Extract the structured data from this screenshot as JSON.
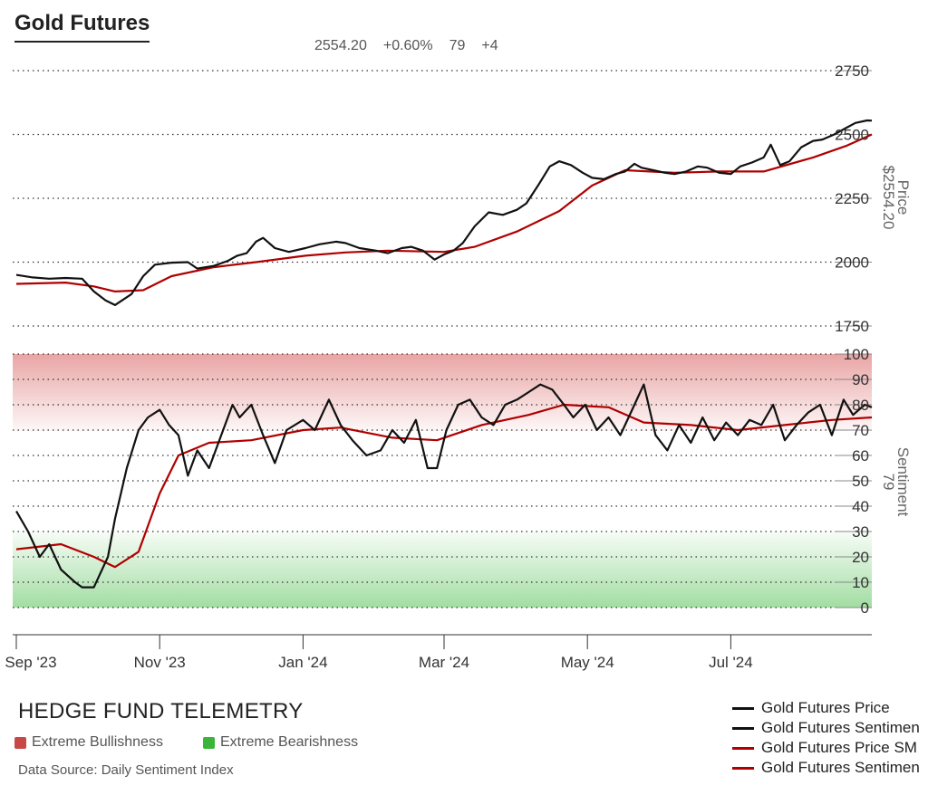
{
  "header": {
    "title": "Gold Futures",
    "price": "2554.20",
    "change": "+0.60%",
    "sentiment": "79",
    "sentiment_change": "+4"
  },
  "colors": {
    "price_line": "#111111",
    "sma_line": "#b00000",
    "bull_zone": "#e8a0a0",
    "bear_zone": "#9ddb9d",
    "bull_swatch": "#c84848",
    "bear_swatch": "#3ab53a"
  },
  "footer": {
    "brand": "HEDGE FUND TELEMETRY",
    "extreme_bull": "Extreme Bullishness",
    "extreme_bear": "Extreme Bearishness",
    "source": "Data Source: Daily Sentiment Index"
  },
  "legend": [
    "Gold Futures Price",
    "Gold Futures Sentimen",
    "Gold Futures Price SM",
    "Gold Futures Sentimen"
  ],
  "chart_data": {
    "type": "line",
    "x_ticks": [
      "Sep '23",
      "Nov '23",
      "Jan '24",
      "Mar '24",
      "May '24",
      "Jul '24"
    ],
    "price_panel": {
      "ylabel": "Price",
      "last_label": "$2554.20",
      "yticks": [
        1750,
        2000,
        2250,
        2500,
        2750
      ],
      "ylim": [
        1750,
        2750
      ],
      "price": [
        [
          "2023-09-01",
          1950
        ],
        [
          "2023-09-08",
          1940
        ],
        [
          "2023-09-15",
          1935
        ],
        [
          "2023-09-22",
          1938
        ],
        [
          "2023-09-29",
          1935
        ],
        [
          "2023-10-04",
          1885
        ],
        [
          "2023-10-09",
          1850
        ],
        [
          "2023-10-13",
          1832
        ],
        [
          "2023-10-20",
          1875
        ],
        [
          "2023-10-25",
          1945
        ],
        [
          "2023-10-30",
          1990
        ],
        [
          "2023-11-06",
          1998
        ],
        [
          "2023-11-13",
          2000
        ],
        [
          "2023-11-17",
          1975
        ],
        [
          "2023-11-24",
          1985
        ],
        [
          "2023-11-30",
          2005
        ],
        [
          "2023-12-04",
          2025
        ],
        [
          "2023-12-08",
          2035
        ],
        [
          "2023-12-12",
          2080
        ],
        [
          "2023-12-15",
          2095
        ],
        [
          "2023-12-20",
          2055
        ],
        [
          "2023-12-26",
          2040
        ],
        [
          "2024-01-02",
          2055
        ],
        [
          "2024-01-08",
          2070
        ],
        [
          "2024-01-15",
          2080
        ],
        [
          "2024-01-19",
          2075
        ],
        [
          "2024-01-25",
          2055
        ],
        [
          "2024-02-01",
          2045
        ],
        [
          "2024-02-06",
          2035
        ],
        [
          "2024-02-12",
          2055
        ],
        [
          "2024-02-16",
          2060
        ],
        [
          "2024-02-21",
          2045
        ],
        [
          "2024-02-26",
          2010
        ],
        [
          "2024-03-01",
          2030
        ],
        [
          "2024-03-05",
          2045
        ],
        [
          "2024-03-09",
          2075
        ],
        [
          "2024-03-14",
          2140
        ],
        [
          "2024-03-20",
          2195
        ],
        [
          "2024-03-26",
          2185
        ],
        [
          "2024-04-01",
          2205
        ],
        [
          "2024-04-05",
          2230
        ],
        [
          "2024-04-10",
          2300
        ],
        [
          "2024-04-15",
          2375
        ],
        [
          "2024-04-19",
          2395
        ],
        [
          "2024-04-24",
          2380
        ],
        [
          "2024-04-29",
          2350
        ],
        [
          "2024-05-03",
          2330
        ],
        [
          "2024-05-08",
          2325
        ],
        [
          "2024-05-13",
          2345
        ],
        [
          "2024-05-17",
          2355
        ],
        [
          "2024-05-21",
          2385
        ],
        [
          "2024-05-24",
          2370
        ],
        [
          "2024-05-29",
          2360
        ],
        [
          "2024-06-03",
          2350
        ],
        [
          "2024-06-07",
          2345
        ],
        [
          "2024-06-12",
          2355
        ],
        [
          "2024-06-17",
          2375
        ],
        [
          "2024-06-21",
          2370
        ],
        [
          "2024-06-26",
          2350
        ],
        [
          "2024-07-01",
          2345
        ],
        [
          "2024-07-05",
          2375
        ],
        [
          "2024-07-10",
          2390
        ],
        [
          "2024-07-15",
          2410
        ],
        [
          "2024-07-18",
          2460
        ],
        [
          "2024-07-22",
          2380
        ],
        [
          "2024-07-26",
          2395
        ],
        [
          "2024-07-31",
          2450
        ],
        [
          "2024-08-05",
          2475
        ],
        [
          "2024-08-09",
          2480
        ],
        [
          "2024-08-14",
          2500
        ],
        [
          "2024-08-19",
          2525
        ],
        [
          "2024-08-23",
          2545
        ],
        [
          "2024-08-28",
          2555
        ],
        [
          "2024-08-30",
          2554.2
        ]
      ],
      "sma": [
        [
          "2023-09-01",
          1915
        ],
        [
          "2023-09-22",
          1920
        ],
        [
          "2023-10-04",
          1905
        ],
        [
          "2023-10-13",
          1885
        ],
        [
          "2023-10-25",
          1890
        ],
        [
          "2023-11-06",
          1945
        ],
        [
          "2023-11-24",
          1980
        ],
        [
          "2023-12-12",
          2000
        ],
        [
          "2024-01-02",
          2025
        ],
        [
          "2024-01-19",
          2038
        ],
        [
          "2024-02-06",
          2045
        ],
        [
          "2024-03-01",
          2040
        ],
        [
          "2024-03-14",
          2060
        ],
        [
          "2024-04-01",
          2120
        ],
        [
          "2024-04-19",
          2200
        ],
        [
          "2024-05-03",
          2300
        ],
        [
          "2024-05-17",
          2360
        ],
        [
          "2024-06-07",
          2350
        ],
        [
          "2024-06-26",
          2355
        ],
        [
          "2024-07-15",
          2355
        ],
        [
          "2024-08-05",
          2410
        ],
        [
          "2024-08-19",
          2455
        ],
        [
          "2024-08-30",
          2500
        ]
      ]
    },
    "sentiment_panel": {
      "ylabel": "Sentiment",
      "last_label": "79",
      "yticks": [
        0,
        10,
        20,
        30,
        40,
        50,
        60,
        70,
        80,
        90,
        100
      ],
      "ylim": [
        0,
        100
      ],
      "extreme_bull_range": [
        70,
        100
      ],
      "extreme_bear_range": [
        0,
        30
      ],
      "sentiment": [
        [
          "2023-09-01",
          38
        ],
        [
          "2023-09-06",
          30
        ],
        [
          "2023-09-11",
          20
        ],
        [
          "2023-09-15",
          25
        ],
        [
          "2023-09-20",
          15
        ],
        [
          "2023-09-26",
          10
        ],
        [
          "2023-09-29",
          8
        ],
        [
          "2023-10-04",
          8
        ],
        [
          "2023-10-10",
          20
        ],
        [
          "2023-10-13",
          35
        ],
        [
          "2023-10-18",
          55
        ],
        [
          "2023-10-23",
          70
        ],
        [
          "2023-10-27",
          75
        ],
        [
          "2023-11-01",
          78
        ],
        [
          "2023-11-05",
          72
        ],
        [
          "2023-11-09",
          68
        ],
        [
          "2023-11-13",
          52
        ],
        [
          "2023-11-17",
          62
        ],
        [
          "2023-11-22",
          55
        ],
        [
          "2023-11-28",
          70
        ],
        [
          "2023-12-02",
          80
        ],
        [
          "2023-12-05",
          75
        ],
        [
          "2023-12-10",
          80
        ],
        [
          "2023-12-15",
          68
        ],
        [
          "2023-12-20",
          57
        ],
        [
          "2023-12-25",
          70
        ],
        [
          "2024-01-01",
          74
        ],
        [
          "2024-01-06",
          70
        ],
        [
          "2024-01-12",
          82
        ],
        [
          "2024-01-17",
          72
        ],
        [
          "2024-01-22",
          66
        ],
        [
          "2024-01-28",
          60
        ],
        [
          "2024-02-03",
          62
        ],
        [
          "2024-02-08",
          70
        ],
        [
          "2024-02-13",
          65
        ],
        [
          "2024-02-18",
          74
        ],
        [
          "2024-02-23",
          55
        ],
        [
          "2024-02-27",
          55
        ],
        [
          "2024-03-02",
          70
        ],
        [
          "2024-03-07",
          80
        ],
        [
          "2024-03-12",
          82
        ],
        [
          "2024-03-17",
          75
        ],
        [
          "2024-03-22",
          72
        ],
        [
          "2024-03-27",
          80
        ],
        [
          "2024-04-01",
          82
        ],
        [
          "2024-04-06",
          85
        ],
        [
          "2024-04-11",
          88
        ],
        [
          "2024-04-16",
          86
        ],
        [
          "2024-04-21",
          80
        ],
        [
          "2024-04-25",
          75
        ],
        [
          "2024-04-30",
          80
        ],
        [
          "2024-05-05",
          70
        ],
        [
          "2024-05-10",
          75
        ],
        [
          "2024-05-15",
          68
        ],
        [
          "2024-05-20",
          78
        ],
        [
          "2024-05-25",
          88
        ],
        [
          "2024-05-30",
          68
        ],
        [
          "2024-06-04",
          62
        ],
        [
          "2024-06-09",
          72
        ],
        [
          "2024-06-14",
          65
        ],
        [
          "2024-06-19",
          75
        ],
        [
          "2024-06-24",
          66
        ],
        [
          "2024-06-29",
          73
        ],
        [
          "2024-07-04",
          68
        ],
        [
          "2024-07-09",
          74
        ],
        [
          "2024-07-14",
          72
        ],
        [
          "2024-07-19",
          80
        ],
        [
          "2024-07-24",
          66
        ],
        [
          "2024-07-29",
          72
        ],
        [
          "2024-08-03",
          77
        ],
        [
          "2024-08-08",
          80
        ],
        [
          "2024-08-13",
          68
        ],
        [
          "2024-08-18",
          82
        ],
        [
          "2024-08-22",
          76
        ],
        [
          "2024-08-27",
          80
        ],
        [
          "2024-08-30",
          79
        ]
      ],
      "sma": [
        [
          "2023-09-01",
          23
        ],
        [
          "2023-09-20",
          25
        ],
        [
          "2023-10-04",
          20
        ],
        [
          "2023-10-13",
          16
        ],
        [
          "2023-10-23",
          22
        ],
        [
          "2023-11-01",
          45
        ],
        [
          "2023-11-09",
          60
        ],
        [
          "2023-11-22",
          65
        ],
        [
          "2023-12-10",
          66
        ],
        [
          "2024-01-01",
          70
        ],
        [
          "2024-01-17",
          71
        ],
        [
          "2024-02-08",
          67
        ],
        [
          "2024-02-27",
          66
        ],
        [
          "2024-03-17",
          72
        ],
        [
          "2024-04-06",
          76
        ],
        [
          "2024-04-21",
          80
        ],
        [
          "2024-05-10",
          79
        ],
        [
          "2024-05-25",
          73
        ],
        [
          "2024-06-14",
          72
        ],
        [
          "2024-07-04",
          70
        ],
        [
          "2024-07-24",
          72
        ],
        [
          "2024-08-13",
          74
        ],
        [
          "2024-08-30",
          75
        ]
      ]
    }
  }
}
